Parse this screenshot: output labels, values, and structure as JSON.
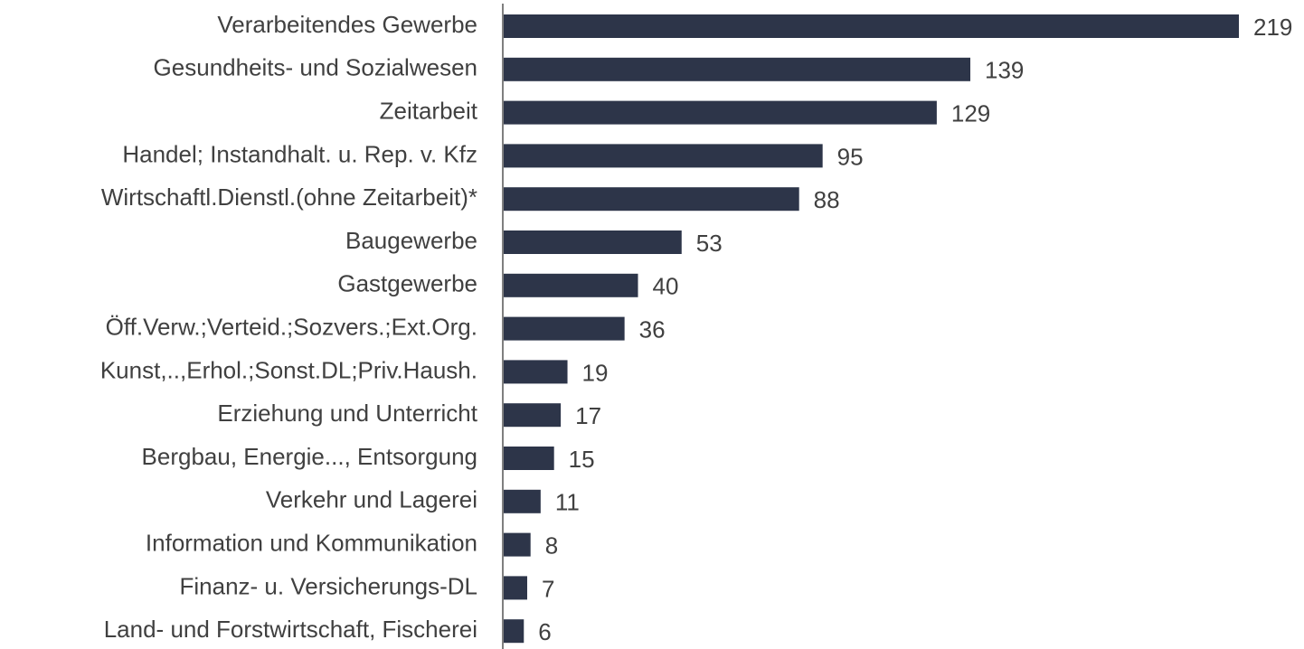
{
  "chart_data": {
    "type": "bar",
    "orientation": "horizontal",
    "categories": [
      "Verarbeitendes Gewerbe",
      "Gesundheits- und Sozialwesen",
      "Zeitarbeit",
      "Handel; Instandhalt. u. Rep. v. Kfz",
      "Wirtschaftl.Dienstl.(ohne Zeitarbeit)*",
      "Baugewerbe",
      "Gastgewerbe",
      "Öff.Verw.;Verteid.;Sozvers.;Ext.Org.",
      "Kunst,..,Erhol.;Sonst.DL;Priv.Haush.",
      "Erziehung und Unterricht",
      "Bergbau, Energie..., Entsorgung",
      "Verkehr und Lagerei",
      "Information und Kommunikation",
      "Finanz- u. Versicherungs-DL",
      "Land- und Forstwirtschaft, Fischerei"
    ],
    "values": [
      219,
      139,
      129,
      95,
      88,
      53,
      40,
      36,
      19,
      17,
      15,
      11,
      8,
      7,
      6
    ],
    "color": "#2d3549"
  }
}
